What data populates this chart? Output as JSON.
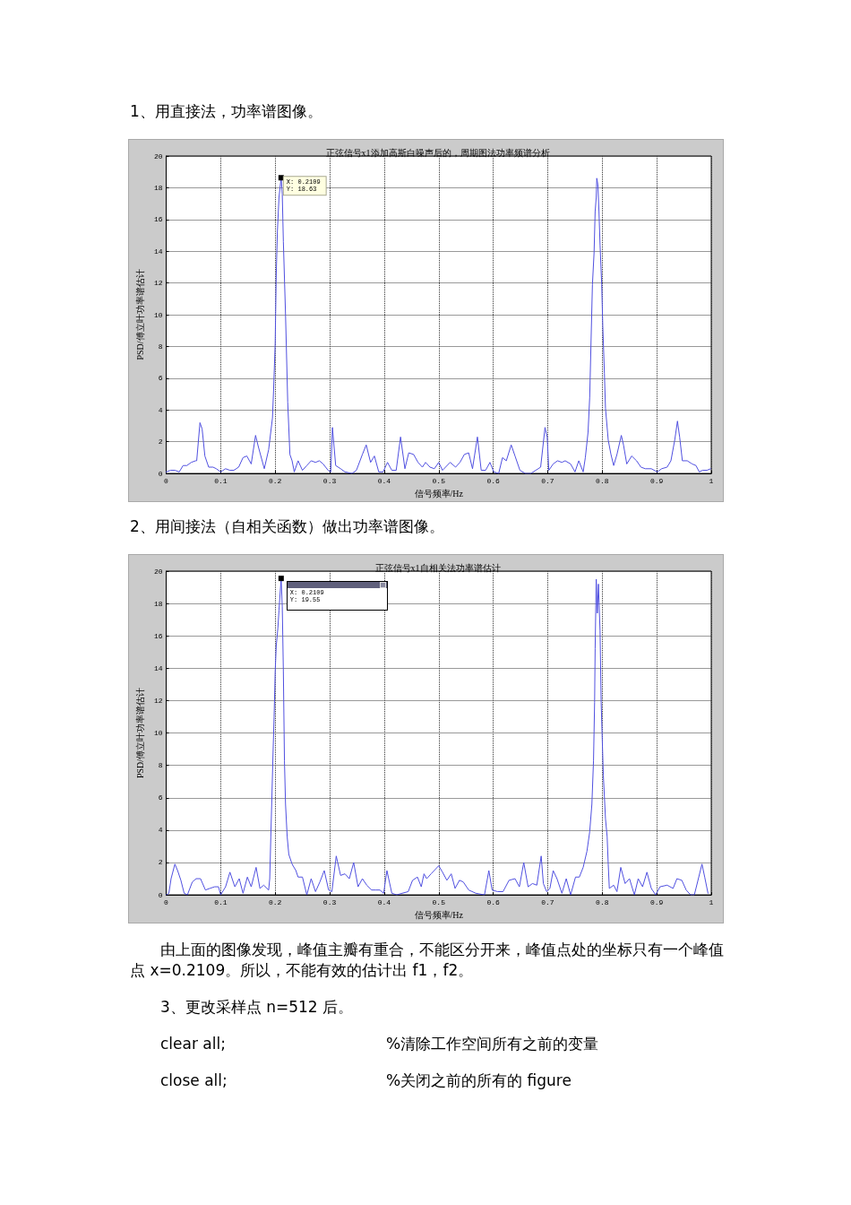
{
  "chart_data": [
    {
      "type": "line",
      "title": "正弦信号x1添加高斯白噪声后的，周期图法功率频谱分析",
      "xlabel": "信号频率/Hz",
      "ylabel": "PSD/傅立叶功率谱估计",
      "x": [
        0,
        0.008,
        0.016,
        0.024,
        0.031,
        0.038,
        0.046,
        0.054,
        0.056,
        0.062,
        0.066,
        0.071,
        0.078,
        0.086,
        0.092,
        0.1,
        0.109,
        0.117,
        0.124,
        0.133,
        0.141,
        0.148,
        0.156,
        0.164,
        0.169,
        0.18,
        0.188,
        0.195,
        0.197,
        0.2,
        0.202,
        0.204,
        0.207,
        0.2109,
        0.213,
        0.215,
        0.219,
        0.223,
        0.227,
        0.231,
        0.235,
        0.242,
        0.25,
        0.258,
        0.266,
        0.274,
        0.281,
        0.288,
        0.297,
        0.302,
        0.305,
        0.311,
        0.32,
        0.328,
        0.341,
        0.349,
        0.36,
        0.367,
        0.375,
        0.382,
        0.39,
        0.398,
        0.406,
        0.414,
        0.422,
        0.43,
        0.438,
        0.445,
        0.454,
        0.462,
        0.47,
        0.476,
        0.484,
        0.492,
        0.5,
        0.507,
        0.521,
        0.531,
        0.539,
        0.547,
        0.555,
        0.562,
        0.571,
        0.578,
        0.586,
        0.594,
        0.601,
        0.61,
        0.617,
        0.624,
        0.633,
        0.64,
        0.649,
        0.659,
        0.669,
        0.678,
        0.687,
        0.695,
        0.699,
        0.702,
        0.71,
        0.718,
        0.726,
        0.732,
        0.742,
        0.75,
        0.757,
        0.765,
        0.769,
        0.774,
        0.777,
        0.78,
        0.782,
        0.785,
        0.787,
        0.789,
        0.79,
        0.792,
        0.794,
        0.796,
        0.799,
        0.801,
        0.804,
        0.806,
        0.811,
        0.816,
        0.821,
        0.827,
        0.835,
        0.839,
        0.845,
        0.854,
        0.863,
        0.871,
        0.879,
        0.89,
        0.901,
        0.909,
        0.919,
        0.926,
        0.933,
        0.938,
        0.942,
        0.947,
        0.956,
        0.965,
        0.972,
        0.978,
        0.984,
        0.992,
        0.999
      ],
      "series": [
        {
          "color": "#5050e0",
          "values": [
            0.1,
            0.2,
            0.2,
            0.1,
            0.5,
            0.5,
            0.7,
            0.8,
            0.8,
            3.2,
            2.8,
            1.1,
            0.4,
            0.4,
            0.3,
            0.1,
            0.3,
            0.2,
            0.2,
            0.4,
            1,
            1.1,
            0.6,
            2.4,
            1.7,
            0.3,
            1.5,
            3.5,
            5.2,
            8.2,
            12.6,
            15.2,
            17.4,
            18.63,
            17.6,
            14.6,
            10,
            4.5,
            1.2,
            0.8,
            0.1,
            0.8,
            0.2,
            0.5,
            0.8,
            0.7,
            0.8,
            0.6,
            0.2,
            0.1,
            2.9,
            0.5,
            0.3,
            0.1,
            0,
            0.2,
            1.2,
            1.8,
            0.7,
            1.1,
            0.1,
            0.1,
            0.7,
            0.2,
            0.2,
            2.3,
            0.3,
            1.3,
            1.2,
            0.7,
            0.4,
            0.7,
            0.4,
            0.3,
            0.7,
            0.2,
            0.7,
            0.4,
            0.7,
            1.2,
            1.3,
            0.3,
            2.3,
            0.2,
            0.2,
            0.7,
            0.1,
            0,
            1,
            0.8,
            1.8,
            1.1,
            0.2,
            0,
            0,
            0.2,
            0.4,
            2.9,
            2.3,
            0.2,
            0.6,
            0.8,
            0.7,
            0.8,
            0.6,
            0.1,
            0.8,
            0.1,
            1,
            2.6,
            4.8,
            9.1,
            11.9,
            13.9,
            16.5,
            17.4,
            18.6,
            18.2,
            16.5,
            14.4,
            11.9,
            9.3,
            6.3,
            4.1,
            2.1,
            1.2,
            0.5,
            1.2,
            2.4,
            1.8,
            0.6,
            1.1,
            0.8,
            0.4,
            0.3,
            0.3,
            0.1,
            0.3,
            0.4,
            0.8,
            2.1,
            3.3,
            2.3,
            0.8,
            0.8,
            0.6,
            0.5,
            0.1,
            0.2,
            0.2,
            0.3
          ]
        }
      ],
      "xlim": [
        0,
        1
      ],
      "xticks": [
        0,
        0.1,
        0.2,
        0.3,
        0.4,
        0.5,
        0.6,
        0.7,
        0.8,
        0.9,
        1
      ],
      "ylim": [
        0,
        20
      ],
      "yticks": [
        0,
        2,
        4,
        6,
        8,
        10,
        12,
        14,
        16,
        18,
        20
      ],
      "grid": true,
      "marker": "none",
      "line_style": "solid",
      "annotations": [
        "1、用直接法，功率谱图像。",
        {
          "text": "X: 0.2109\nY: 18.63",
          "x": 0.2109,
          "y": 18.63
        }
      ]
    },
    {
      "type": "line",
      "title": "正弦信号x1自相关法功率谱估计",
      "xlabel": "信号频率/Hz",
      "ylabel": "PSD/傅立叶功率谱估计",
      "x": [
        0,
        0.005,
        0.009,
        0.016,
        0.021,
        0.027,
        0.033,
        0.039,
        0.048,
        0.055,
        0.063,
        0.072,
        0.08,
        0.089,
        0.096,
        0.1,
        0.109,
        0.117,
        0.126,
        0.134,
        0.141,
        0.149,
        0.156,
        0.165,
        0.172,
        0.179,
        0.188,
        0.19,
        0.192,
        0.194,
        0.196,
        0.198,
        0.2,
        0.202,
        0.205,
        0.207,
        0.2109,
        0.213,
        0.215,
        0.217,
        0.219,
        0.222,
        0.225,
        0.231,
        0.238,
        0.242,
        0.25,
        0.258,
        0.266,
        0.274,
        0.282,
        0.29,
        0.298,
        0.304,
        0.312,
        0.32,
        0.328,
        0.336,
        0.344,
        0.352,
        0.36,
        0.368,
        0.377,
        0.385,
        0.392,
        0.399,
        0.405,
        0.414,
        0.423,
        0.433,
        0.444,
        0.452,
        0.461,
        0.468,
        0.473,
        0.478,
        0.486,
        0.5,
        0.507,
        0.515,
        0.523,
        0.53,
        0.538,
        0.545,
        0.555,
        0.568,
        0.584,
        0.592,
        0.598,
        0.608,
        0.618,
        0.629,
        0.64,
        0.648,
        0.656,
        0.664,
        0.672,
        0.68,
        0.688,
        0.692,
        0.698,
        0.704,
        0.71,
        0.717,
        0.726,
        0.734,
        0.742,
        0.751,
        0.758,
        0.765,
        0.772,
        0.777,
        0.781,
        0.784,
        0.786,
        0.787,
        0.789,
        0.791,
        0.793,
        0.796,
        0.798,
        0.802,
        0.806,
        0.809,
        0.811,
        0.813,
        0.821,
        0.827,
        0.834,
        0.842,
        0.85,
        0.859,
        0.866,
        0.874,
        0.882,
        0.89,
        0.898,
        0.906,
        0.919,
        0.93,
        0.937,
        0.946,
        0.954,
        0.962,
        0.969,
        0.983,
        0.988,
        0.994
      ],
      "series": [
        {
          "color": "#5050e0",
          "values": [
            0,
            0.1,
            1,
            1.9,
            1.5,
            0.9,
            0.1,
            0,
            0.8,
            1,
            1,
            0.3,
            0.4,
            0.5,
            0.5,
            0,
            0.5,
            1.4,
            0.5,
            1,
            0.1,
            1.1,
            0.5,
            1.7,
            0.4,
            0.6,
            0.3,
            1,
            3.6,
            6.1,
            8.7,
            11,
            13.8,
            15.4,
            16.5,
            17.6,
            19.55,
            17.8,
            13.8,
            8.3,
            5.6,
            3.6,
            2.5,
            1.9,
            1.5,
            1.1,
            1.1,
            0,
            1,
            0.2,
            0.8,
            1.5,
            0.3,
            0.2,
            2.4,
            1.2,
            1.3,
            1,
            2,
            0.5,
            1,
            0.6,
            0.3,
            0.3,
            0.3,
            0.1,
            1.5,
            0.1,
            0,
            0.1,
            0.2,
            0.9,
            1.1,
            0.5,
            1.3,
            1,
            1.3,
            1.8,
            1.4,
            0.9,
            1.3,
            0.4,
            0.9,
            0.8,
            0.3,
            0.1,
            0,
            1.5,
            0.3,
            0.2,
            0.2,
            0.9,
            1,
            0.5,
            2,
            0.5,
            0.7,
            0.6,
            2.4,
            0.7,
            0.2,
            0.4,
            1.5,
            1,
            0.1,
            1,
            0,
            1.1,
            1.1,
            1.7,
            2.7,
            3.9,
            5.6,
            8.3,
            11.9,
            15.2,
            19.5,
            17.4,
            19.2,
            16.3,
            11.9,
            7.4,
            4.7,
            3.6,
            1.9,
            0.4,
            0.6,
            0.2,
            1.7,
            0.7,
            1,
            0,
            1,
            0.5,
            1.4,
            0.4,
            0,
            0.5,
            0.6,
            0.4,
            1,
            0.9,
            0.3,
            0,
            0,
            1.9,
            1.1,
            0.1
          ]
        }
      ],
      "xlim": [
        0,
        1
      ],
      "xticks": [
        0,
        0.1,
        0.2,
        0.3,
        0.4,
        0.5,
        0.6,
        0.7,
        0.8,
        0.9,
        1
      ],
      "ylim": [
        0,
        20
      ],
      "yticks": [
        0,
        2,
        4,
        6,
        8,
        10,
        12,
        14,
        16,
        18,
        20
      ],
      "grid": true,
      "marker": "none",
      "line_style": "solid",
      "annotations": [
        "2、用间接法（自相关函数）做出功率谱图像。",
        {
          "text": "X: 0.2109\nY: 19.55",
          "x": 0.2109,
          "y": 19.55
        },
        "由上面的图像发现，峰值主瓣有重合，不能区分开来，峰值点处的坐标只有一个峰值点 x=0.2109。所以，不能有效的估计出 f1，f2。",
        "3、更改采样点 n=512 后。",
        "clear all;\t%清除工作空间所有之前的变量",
        "close all;\t%关闭之前的所有的 figure"
      ]
    }
  ]
}
